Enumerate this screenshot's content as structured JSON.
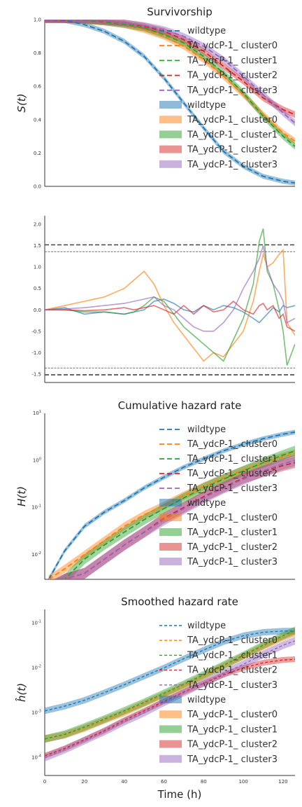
{
  "palette": {
    "wildtype": "#1f77b4",
    "cluster0": "#ff7f0e",
    "cluster1": "#2ca02c",
    "cluster2": "#d62728",
    "cluster3": "#9467bd"
  },
  "series_names": [
    "wildtype",
    "TA_ydcP-1_ cluster0",
    "TA_ydcP-1_ cluster1",
    "TA_ydcP-1_ cluster2",
    "TA_ydcP-1_ cluster3"
  ],
  "xlabel": "Time (h)",
  "x_ticks": [
    "0",
    "20",
    "40",
    "60",
    "80",
    "100",
    "120"
  ],
  "chart_data": [
    {
      "type": "line",
      "title": "Survivorship",
      "ylabel": "S(t)",
      "xlim": [
        0,
        126
      ],
      "ylim": [
        0,
        1
      ],
      "y_ticks": [
        "0.0",
        "0.2",
        "0.4",
        "0.6",
        "0.8",
        "1.0"
      ],
      "legend": "top-right",
      "x": [
        0,
        10,
        20,
        30,
        40,
        50,
        60,
        70,
        80,
        90,
        100,
        110,
        120,
        126
      ],
      "series": [
        {
          "name": "wildtype",
          "values": [
            1.0,
            0.995,
            0.97,
            0.93,
            0.87,
            0.78,
            0.65,
            0.5,
            0.35,
            0.21,
            0.12,
            0.06,
            0.03,
            0.02
          ]
        },
        {
          "name": "TA_ydcP-1_ cluster0",
          "values": [
            1.0,
            1.0,
            0.995,
            0.985,
            0.97,
            0.94,
            0.9,
            0.84,
            0.76,
            0.66,
            0.55,
            0.43,
            0.32,
            0.27
          ]
        },
        {
          "name": "TA_ydcP-1_ cluster1",
          "values": [
            1.0,
            1.0,
            0.995,
            0.985,
            0.97,
            0.95,
            0.91,
            0.86,
            0.78,
            0.68,
            0.56,
            0.42,
            0.3,
            0.24
          ]
        },
        {
          "name": "TA_ydcP-1_ cluster2",
          "values": [
            1.0,
            1.0,
            0.998,
            0.99,
            0.98,
            0.96,
            0.93,
            0.88,
            0.81,
            0.72,
            0.63,
            0.53,
            0.46,
            0.43
          ]
        },
        {
          "name": "TA_ydcP-1_ cluster3",
          "values": [
            1.0,
            1.0,
            0.998,
            0.992,
            0.98,
            0.965,
            0.94,
            0.9,
            0.84,
            0.76,
            0.66,
            0.55,
            0.44,
            0.38
          ]
        }
      ]
    },
    {
      "type": "line",
      "title": "",
      "ylabel": "",
      "xlim": [
        0,
        126
      ],
      "ylim": [
        -1.7,
        2.2
      ],
      "y_ticks": [
        "-1.5",
        "-1.0",
        "-0.5",
        "0.0",
        "0.5",
        "1.0",
        "1.5",
        "2.0"
      ],
      "ref_lines": [
        1.52,
        1.36,
        -1.36,
        -1.52
      ],
      "x": [
        0,
        10,
        20,
        30,
        40,
        45,
        50,
        55,
        60,
        65,
        70,
        75,
        80,
        85,
        90,
        95,
        100,
        105,
        108,
        110,
        112,
        115,
        118,
        120,
        122,
        126
      ],
      "series": [
        {
          "name": "wildtype",
          "values": [
            0.0,
            0.05,
            -0.1,
            -0.05,
            -0.1,
            -0.05,
            0.0,
            0.2,
            0.25,
            0.15,
            0.0,
            -0.05,
            0.1,
            0.0,
            0.1,
            0.05,
            -0.05,
            -0.2,
            -0.3,
            -0.2,
            -0.1,
            0.05,
            -0.05,
            0.1,
            0.05,
            0.1
          ]
        },
        {
          "name": "TA_ydcP-1_ cluster0",
          "values": [
            0.0,
            0.1,
            0.2,
            0.3,
            0.5,
            0.7,
            0.9,
            0.6,
            0.1,
            -0.3,
            -0.6,
            -0.9,
            -1.2,
            -1.0,
            -1.1,
            -0.8,
            -0.5,
            0.2,
            0.9,
            1.3,
            1.0,
            1.1,
            1.3,
            1.4,
            -0.3,
            -0.6
          ]
        },
        {
          "name": "TA_ydcP-1_ cluster1",
          "values": [
            0.0,
            0.0,
            -0.05,
            -0.05,
            -0.1,
            -0.05,
            0.1,
            0.3,
            0.2,
            -0.1,
            -0.4,
            -0.6,
            -0.8,
            -1.0,
            -1.2,
            -0.7,
            -0.2,
            0.6,
            1.6,
            1.9,
            0.9,
            0.6,
            0.0,
            -0.5,
            -1.3,
            -0.8
          ]
        },
        {
          "name": "TA_ydcP-1_ cluster2",
          "values": [
            0.0,
            0.0,
            -0.02,
            0.0,
            0.05,
            0.0,
            0.05,
            0.1,
            0.0,
            -0.1,
            0.1,
            -0.1,
            0.1,
            -0.05,
            0.0,
            0.2,
            0.0,
            -0.1,
            0.1,
            0.15,
            0.0,
            0.1,
            -0.2,
            -0.1,
            -0.4,
            -0.5
          ]
        },
        {
          "name": "TA_ydcP-1_ cluster3",
          "values": [
            0.0,
            0.02,
            0.05,
            0.1,
            0.15,
            0.2,
            0.25,
            0.3,
            0.1,
            0.0,
            -0.2,
            -0.4,
            -0.5,
            -0.5,
            -0.3,
            0.0,
            0.5,
            0.9,
            1.2,
            1.5,
            1.0,
            0.6,
            0.4,
            0.2,
            -0.3,
            -0.2
          ]
        }
      ]
    },
    {
      "type": "line",
      "title": "Cumulative hazard rate",
      "ylabel": "H(t)",
      "xlim": [
        0,
        126
      ],
      "yscale": "log",
      "ylim": [
        0.003,
        10
      ],
      "y_ticks": [
        {
          "value": 0.01,
          "base": "10",
          "exp": "-2"
        },
        {
          "value": 0.1,
          "base": "10",
          "exp": "-1"
        },
        {
          "value": 1,
          "base": "10",
          "exp": "0"
        },
        {
          "value": 10,
          "base": "10",
          "exp": "1"
        }
      ],
      "legend": "top-right",
      "x": [
        2,
        10,
        20,
        30,
        40,
        50,
        60,
        70,
        80,
        90,
        100,
        110,
        120,
        126
      ],
      "series": [
        {
          "name": "wildtype",
          "values": [
            0.003,
            0.012,
            0.04,
            0.08,
            0.14,
            0.26,
            0.44,
            0.72,
            1.08,
            1.6,
            2.2,
            2.9,
            3.6,
            4.0
          ]
        },
        {
          "name": "TA_ydcP-1_ cluster0",
          "values": [
            0.003,
            0.005,
            0.01,
            0.02,
            0.04,
            0.07,
            0.11,
            0.18,
            0.28,
            0.42,
            0.62,
            0.86,
            1.2,
            1.4
          ]
        },
        {
          "name": "TA_ydcP-1_ cluster1",
          "values": [
            0.002,
            0.003,
            0.008,
            0.016,
            0.03,
            0.055,
            0.095,
            0.16,
            0.26,
            0.4,
            0.6,
            0.9,
            1.3,
            1.6
          ]
        },
        {
          "name": "TA_ydcP-1_ cluster2",
          "values": [
            0.002,
            0.003,
            0.004,
            0.008,
            0.016,
            0.03,
            0.06,
            0.1,
            0.17,
            0.27,
            0.42,
            0.58,
            0.78,
            0.9
          ]
        },
        {
          "name": "TA_ydcP-1_ cluster3",
          "values": [
            0.002,
            0.003,
            0.004,
            0.008,
            0.016,
            0.03,
            0.055,
            0.095,
            0.16,
            0.26,
            0.4,
            0.6,
            0.85,
            1.0
          ]
        }
      ]
    },
    {
      "type": "line",
      "title": "Smoothed hazard rate",
      "ylabel": "ĥ(t)",
      "xlim": [
        0,
        126
      ],
      "yscale": "log",
      "ylim": [
        4e-05,
        0.2
      ],
      "y_ticks": [
        {
          "value": 0.0001,
          "base": "10",
          "exp": "-4"
        },
        {
          "value": 0.001,
          "base": "10",
          "exp": "-3"
        },
        {
          "value": 0.01,
          "base": "10",
          "exp": "-2"
        },
        {
          "value": 0.1,
          "base": "10",
          "exp": "-1"
        }
      ],
      "legend": "top-right",
      "x": [
        0,
        10,
        20,
        30,
        40,
        50,
        60,
        70,
        80,
        90,
        100,
        110,
        120,
        126
      ],
      "series": [
        {
          "name": "wildtype",
          "values": [
            0.0011,
            0.0014,
            0.0019,
            0.0028,
            0.0042,
            0.0065,
            0.01,
            0.016,
            0.025,
            0.038,
            0.052,
            0.062,
            0.066,
            0.066
          ]
        },
        {
          "name": "TA_ydcP-1_ cluster0",
          "values": [
            0.00026,
            0.00032,
            0.00045,
            0.00068,
            0.001,
            0.0016,
            0.0025,
            0.004,
            0.0065,
            0.011,
            0.018,
            0.03,
            0.048,
            0.06
          ]
        },
        {
          "name": "TA_ydcP-1_ cluster1",
          "values": [
            0.00026,
            0.00033,
            0.00048,
            0.00072,
            0.0011,
            0.0017,
            0.0027,
            0.0043,
            0.007,
            0.0115,
            0.019,
            0.032,
            0.052,
            0.068
          ]
        },
        {
          "name": "TA_ydcP-1_ cluster2",
          "values": [
            0.00011,
            0.00016,
            0.00025,
            0.0004,
            0.00068,
            0.0011,
            0.0018,
            0.0029,
            0.0045,
            0.007,
            0.01,
            0.013,
            0.015,
            0.0155
          ]
        },
        {
          "name": "TA_ydcP-1_ cluster3",
          "values": [
            0.0001,
            0.00015,
            0.00024,
            0.00038,
            0.00063,
            0.001,
            0.0017,
            0.0028,
            0.0046,
            0.0075,
            0.012,
            0.02,
            0.032,
            0.04
          ]
        }
      ]
    }
  ]
}
